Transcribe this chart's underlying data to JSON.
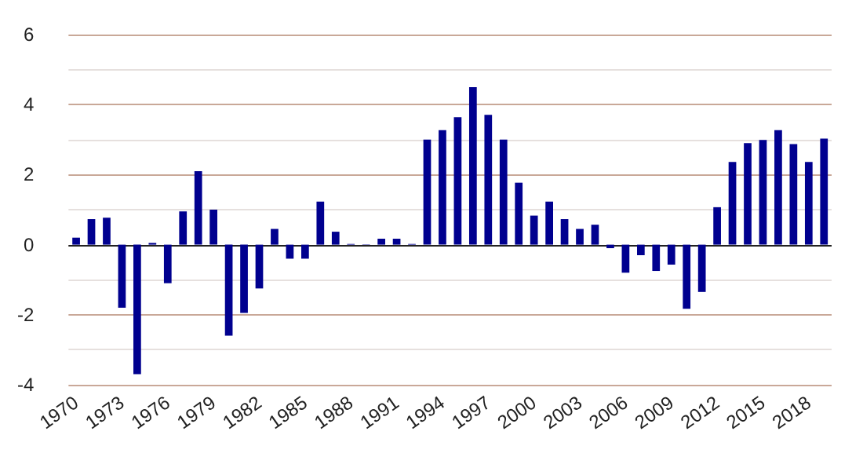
{
  "chart_data": {
    "type": "bar",
    "categories": [
      "1970",
      null,
      null,
      "1973",
      null,
      null,
      "1976",
      null,
      null,
      "1979",
      null,
      null,
      "1982",
      null,
      null,
      "1985",
      null,
      null,
      "1988",
      null,
      null,
      "1991",
      null,
      null,
      "1994",
      null,
      null,
      "1997",
      null,
      null,
      "2000",
      null,
      null,
      "2003",
      null,
      null,
      "2006",
      null,
      null,
      "2009",
      null,
      null,
      "2012",
      null,
      null,
      "2015",
      null,
      null,
      "2018",
      null
    ],
    "values": [
      0.2,
      0.73,
      0.77,
      -1.8,
      -3.7,
      0.05,
      -1.1,
      0.95,
      2.1,
      1.0,
      -2.6,
      -1.95,
      -1.25,
      0.45,
      -0.4,
      -0.4,
      1.23,
      0.37,
      0.02,
      0.01,
      0.17,
      0.17,
      0.02,
      3.0,
      3.27,
      3.64,
      4.5,
      3.71,
      3.0,
      1.77,
      0.83,
      1.23,
      0.73,
      0.45,
      0.57,
      -0.1,
      -0.8,
      -0.3,
      -0.75,
      -0.57,
      -1.83,
      -1.35,
      1.07,
      2.36,
      2.9,
      2.99,
      3.27,
      2.87,
      2.36,
      3.03
    ],
    "color": "#00008f",
    "ylim": [
      -4,
      6
    ],
    "yticks": [
      -4,
      -2,
      0,
      2,
      4,
      6
    ],
    "grid": "y"
  }
}
